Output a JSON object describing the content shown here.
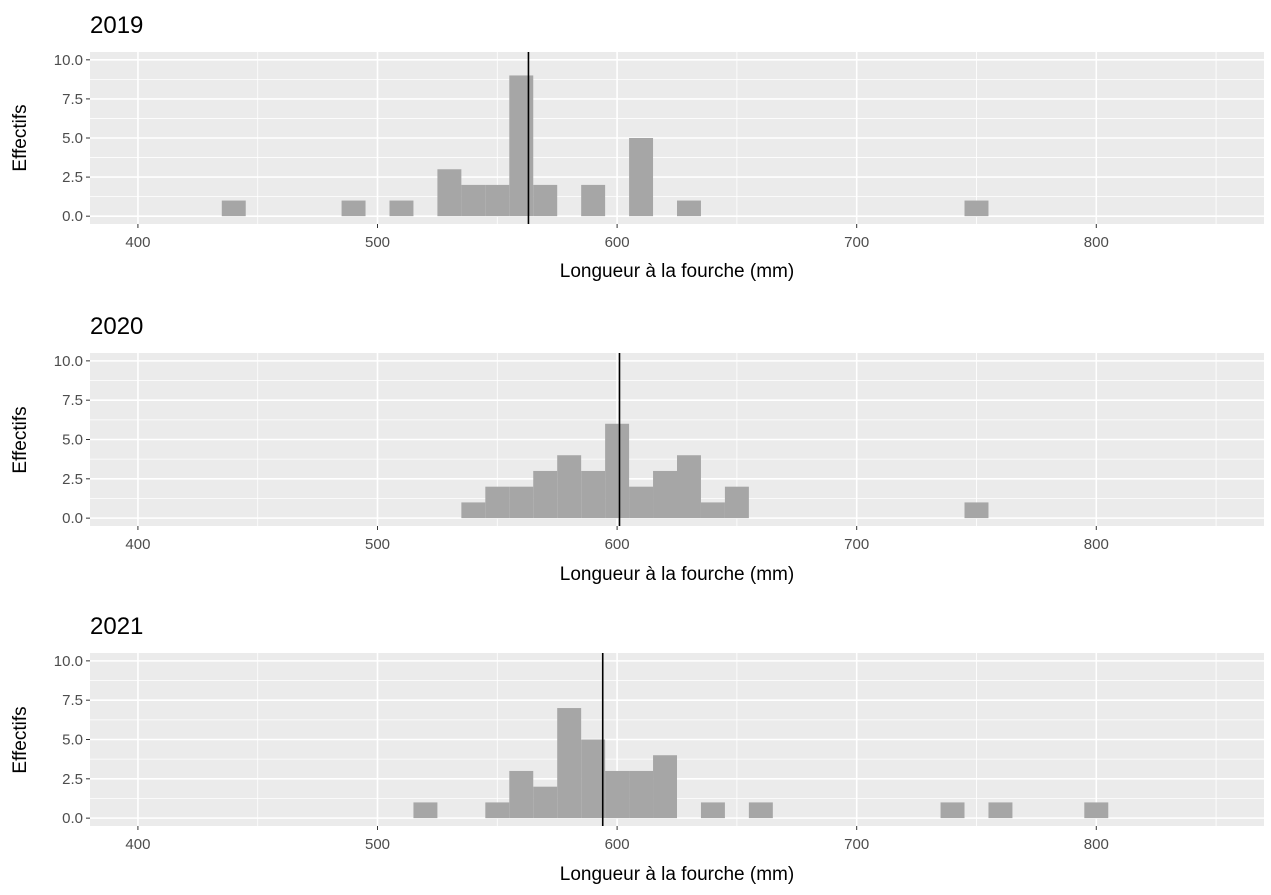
{
  "chart_data": [
    {
      "type": "bar",
      "title": "2019",
      "xlabel": "Longueur à la fourche (mm)",
      "ylabel": "Effectifs",
      "xlim": [
        380,
        870
      ],
      "ylim": [
        -0.5,
        10.5
      ],
      "x_ticks": [
        400,
        500,
        600,
        700,
        800
      ],
      "x_tick_labels": [
        "400",
        "500",
        "600",
        "700",
        "800"
      ],
      "y_ticks": [
        0,
        2.5,
        5,
        7.5,
        10
      ],
      "y_tick_labels": [
        "0.0",
        "2.5",
        "5.0",
        "7.5",
        "10.0"
      ],
      "bin_width": 10,
      "bins": [
        {
          "x": 440,
          "count": 1
        },
        {
          "x": 490,
          "count": 1
        },
        {
          "x": 510,
          "count": 1
        },
        {
          "x": 530,
          "count": 3
        },
        {
          "x": 540,
          "count": 2
        },
        {
          "x": 550,
          "count": 2
        },
        {
          "x": 560,
          "count": 9
        },
        {
          "x": 570,
          "count": 2
        },
        {
          "x": 590,
          "count": 2
        },
        {
          "x": 610,
          "count": 5
        },
        {
          "x": 630,
          "count": 1
        },
        {
          "x": 750,
          "count": 1
        }
      ],
      "vline": 563,
      "grid": true,
      "bar_color": "#a6a6a6",
      "panel_background": "#ebebeb"
    },
    {
      "type": "bar",
      "title": "2020",
      "xlabel": "Longueur à la fourche (mm)",
      "ylabel": "Effectifs",
      "xlim": [
        380,
        870
      ],
      "ylim": [
        -0.5,
        10.5
      ],
      "x_ticks": [
        400,
        500,
        600,
        700,
        800
      ],
      "x_tick_labels": [
        "400",
        "500",
        "600",
        "700",
        "800"
      ],
      "y_ticks": [
        0,
        2.5,
        5,
        7.5,
        10
      ],
      "y_tick_labels": [
        "0.0",
        "2.5",
        "5.0",
        "7.5",
        "10.0"
      ],
      "bin_width": 10,
      "bins": [
        {
          "x": 540,
          "count": 1
        },
        {
          "x": 550,
          "count": 2
        },
        {
          "x": 560,
          "count": 2
        },
        {
          "x": 570,
          "count": 3
        },
        {
          "x": 580,
          "count": 4
        },
        {
          "x": 590,
          "count": 3
        },
        {
          "x": 600,
          "count": 6
        },
        {
          "x": 610,
          "count": 2
        },
        {
          "x": 620,
          "count": 3
        },
        {
          "x": 630,
          "count": 4
        },
        {
          "x": 640,
          "count": 1
        },
        {
          "x": 650,
          "count": 2
        },
        {
          "x": 750,
          "count": 1
        }
      ],
      "vline": 601,
      "grid": true,
      "bar_color": "#a6a6a6",
      "panel_background": "#ebebeb"
    },
    {
      "type": "bar",
      "title": "2021",
      "xlabel": "Longueur à la fourche (mm)",
      "ylabel": "Effectifs",
      "xlim": [
        380,
        870
      ],
      "ylim": [
        -0.5,
        10.5
      ],
      "x_ticks": [
        400,
        500,
        600,
        700,
        800
      ],
      "x_tick_labels": [
        "400",
        "500",
        "600",
        "700",
        "800"
      ],
      "y_ticks": [
        0,
        2.5,
        5,
        7.5,
        10
      ],
      "y_tick_labels": [
        "0.0",
        "2.5",
        "5.0",
        "7.5",
        "10.0"
      ],
      "bin_width": 10,
      "bins": [
        {
          "x": 520,
          "count": 1
        },
        {
          "x": 550,
          "count": 1
        },
        {
          "x": 560,
          "count": 3
        },
        {
          "x": 570,
          "count": 2
        },
        {
          "x": 580,
          "count": 7
        },
        {
          "x": 590,
          "count": 5
        },
        {
          "x": 600,
          "count": 3
        },
        {
          "x": 610,
          "count": 3
        },
        {
          "x": 620,
          "count": 4
        },
        {
          "x": 640,
          "count": 1
        },
        {
          "x": 660,
          "count": 1
        },
        {
          "x": 740,
          "count": 1
        },
        {
          "x": 760,
          "count": 1
        },
        {
          "x": 800,
          "count": 1
        }
      ],
      "vline": 594,
      "grid": true,
      "bar_color": "#a6a6a6",
      "panel_background": "#ebebeb"
    }
  ]
}
